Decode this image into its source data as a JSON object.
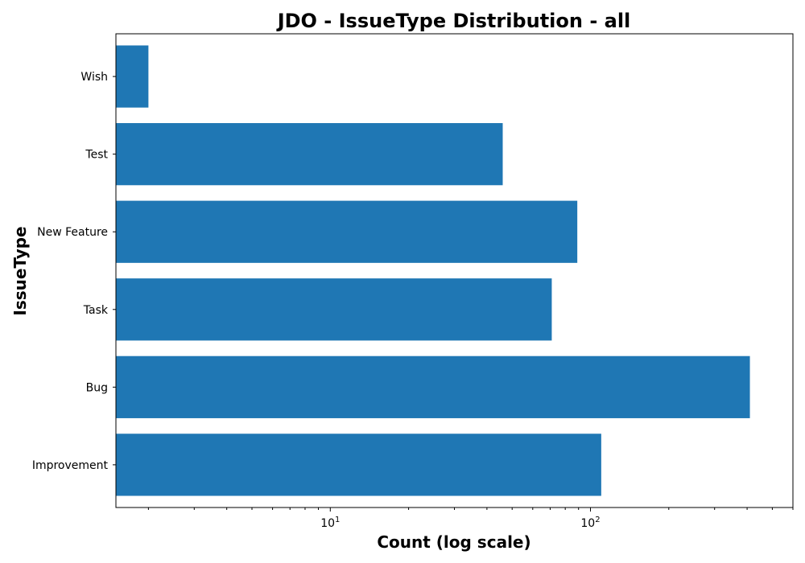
{
  "chart_data": {
    "type": "bar",
    "orientation": "horizontal",
    "title": "JDO - IssueType Distribution - all",
    "xlabel": "Count (log scale)",
    "ylabel": "IssueType",
    "x_scale": "log",
    "xlim": [
      1.5,
      600
    ],
    "x_ticks": [
      {
        "value": 10,
        "base": "10",
        "exp": "1"
      },
      {
        "value": 100,
        "base": "10",
        "exp": "2"
      }
    ],
    "grid": false,
    "categories": [
      "Improvement",
      "Bug",
      "Task",
      "New Feature",
      "Test",
      "Wish"
    ],
    "values": [
      110,
      410,
      71,
      89,
      46,
      2
    ],
    "colors": {
      "bar": "#1f77b4",
      "axis": "#000000"
    }
  }
}
